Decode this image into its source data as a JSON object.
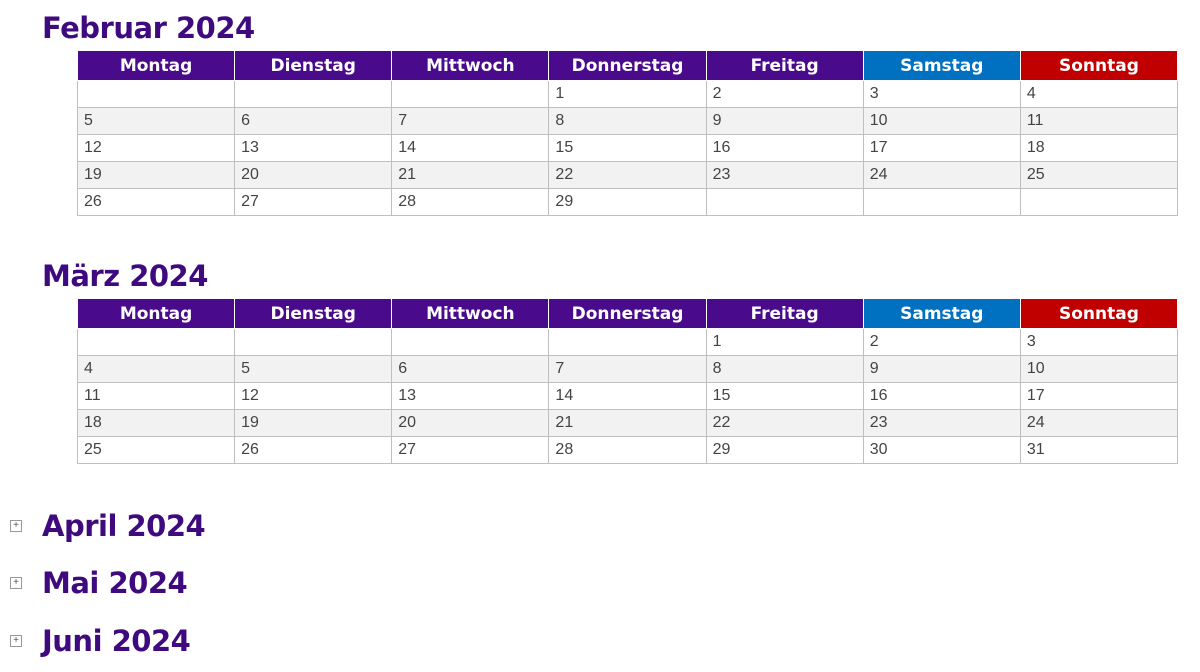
{
  "months": [
    {
      "title": "Februar 2024",
      "header": [
        "Montag",
        "Dienstag",
        "Mittwoch",
        "Donnerstag",
        "Freitag",
        "Samstag",
        "Sonntag"
      ],
      "rows": [
        [
          null,
          null,
          null,
          1,
          2,
          3,
          4
        ],
        [
          5,
          6,
          7,
          8,
          9,
          10,
          11
        ],
        [
          12,
          13,
          14,
          15,
          16,
          17,
          18
        ],
        [
          19,
          20,
          21,
          22,
          23,
          24,
          25
        ],
        [
          26,
          27,
          28,
          29,
          null,
          null,
          null
        ]
      ]
    },
    {
      "title": "März 2024",
      "header": [
        "Montag",
        "Dienstag",
        "Mittwoch",
        "Donnerstag",
        "Freitag",
        "Samstag",
        "Sonntag"
      ],
      "rows": [
        [
          null,
          null,
          null,
          null,
          1,
          2,
          3
        ],
        [
          4,
          5,
          6,
          7,
          8,
          9,
          10
        ],
        [
          11,
          12,
          13,
          14,
          15,
          16,
          17
        ],
        [
          18,
          19,
          20,
          21,
          22,
          23,
          24
        ],
        [
          25,
          26,
          27,
          28,
          29,
          30,
          31
        ]
      ]
    }
  ],
  "collapsed": [
    {
      "title": "April 2024"
    },
    {
      "title": "Mai 2024"
    },
    {
      "title": "Juni 2024"
    }
  ]
}
